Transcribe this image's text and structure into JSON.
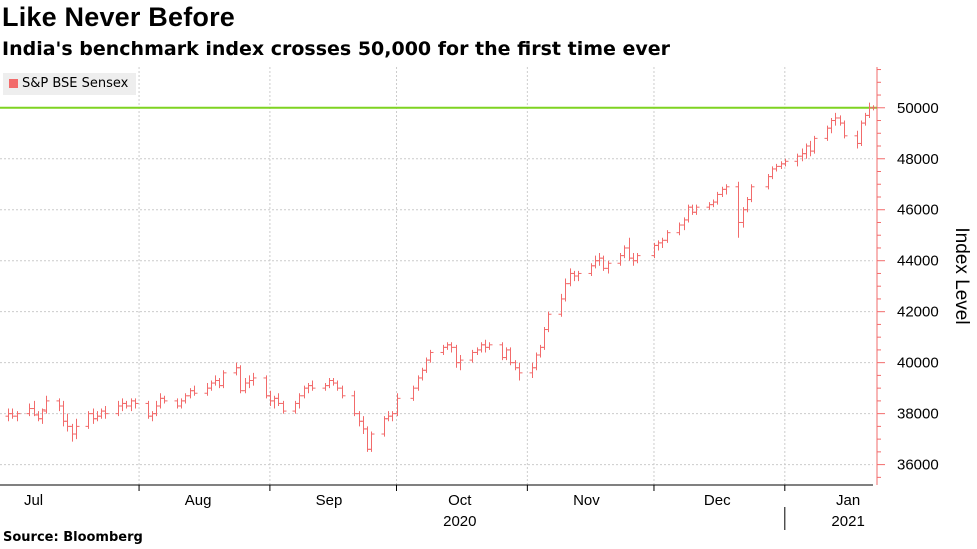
{
  "title": "Like Never Before",
  "subtitle": "India's benchmark index crosses 50,000 for the first time ever",
  "source": "Source: Bloomberg",
  "colors": {
    "series": "#f26b6b",
    "reference_line": "#7ed321",
    "grid": "#cccccc"
  },
  "chart_data": {
    "type": "ohlc",
    "title": "Like Never Before",
    "subtitle": "India's benchmark index crosses 50,000 for the first time ever",
    "ylabel": "Index Level",
    "xlabel": "",
    "ylim": [
      35200,
      51600
    ],
    "y_ticks": [
      36000,
      38000,
      40000,
      42000,
      44000,
      46000,
      48000,
      50000
    ],
    "y_axis_position": "right",
    "grid": true,
    "legend": {
      "position": "top-left",
      "entries": [
        "S&P BSE Sensex"
      ]
    },
    "reference_line": {
      "y": 50000
    },
    "x_range": [
      "2020-06-30",
      "2021-01-20"
    ],
    "month_labels": [
      {
        "label": "Jul",
        "date": "2020-07-07"
      },
      {
        "label": "Aug",
        "date": "2020-08-15"
      },
      {
        "label": "Sep",
        "date": "2020-09-15"
      },
      {
        "label": "Oct",
        "date": "2020-10-16"
      },
      {
        "label": "Nov",
        "date": "2020-11-15"
      },
      {
        "label": "Dec",
        "date": "2020-12-16"
      },
      {
        "label": "Jan",
        "date": "2021-01-16"
      }
    ],
    "year_labels": [
      {
        "label": "2020",
        "date": "2020-10-16"
      },
      {
        "label": "2021",
        "date": "2021-01-16"
      }
    ],
    "series": [
      {
        "name": "S&P BSE Sensex",
        "values": [
          [
            "2020-07-01",
            37900,
            38200,
            37700,
            38000
          ],
          [
            "2020-07-02",
            38000,
            38200,
            37800,
            37900
          ],
          [
            "2020-07-03",
            37900,
            38100,
            37700,
            38000
          ],
          [
            "2020-07-06",
            38000,
            38400,
            37900,
            38200
          ],
          [
            "2020-07-07",
            38200,
            38500,
            37900,
            37950
          ],
          [
            "2020-07-08",
            37950,
            38100,
            37700,
            37800
          ],
          [
            "2020-07-09",
            37800,
            38200,
            37600,
            38150
          ],
          [
            "2020-07-10",
            38100,
            38700,
            38000,
            38500
          ],
          [
            "2020-07-13",
            38500,
            38600,
            38100,
            38300
          ],
          [
            "2020-07-14",
            38300,
            38500,
            37500,
            37700
          ],
          [
            "2020-07-15",
            37700,
            38000,
            37300,
            37500
          ],
          [
            "2020-07-16",
            37500,
            37600,
            36900,
            37200
          ],
          [
            "2020-07-17",
            37200,
            37800,
            37000,
            37500
          ],
          [
            "2020-07-20",
            37500,
            38100,
            37400,
            38000
          ],
          [
            "2020-07-21",
            38000,
            38200,
            37600,
            37800
          ],
          [
            "2020-07-22",
            37800,
            38100,
            37700,
            37900
          ],
          [
            "2020-07-23",
            37900,
            38200,
            37800,
            38100
          ],
          [
            "2020-07-24",
            38100,
            38300,
            37800,
            38000
          ],
          [
            "2020-07-27",
            38000,
            38500,
            37900,
            38300
          ],
          [
            "2020-07-28",
            38300,
            38600,
            38100,
            38400
          ],
          [
            "2020-07-29",
            38400,
            38500,
            38200,
            38300
          ],
          [
            "2020-07-30",
            38300,
            38600,
            38100,
            38500
          ],
          [
            "2020-07-31",
            38500,
            38600,
            38200,
            38400
          ],
          [
            "2020-08-03",
            38400,
            38500,
            37800,
            37900
          ],
          [
            "2020-08-04",
            37900,
            38100,
            37700,
            38000
          ],
          [
            "2020-08-05",
            38000,
            38500,
            37900,
            38300
          ],
          [
            "2020-08-06",
            38300,
            38800,
            38200,
            38600
          ],
          [
            "2020-08-07",
            38600,
            38700,
            38400,
            38500
          ],
          [
            "2020-08-10",
            38500,
            38600,
            38200,
            38300
          ],
          [
            "2020-08-11",
            38300,
            38600,
            38200,
            38500
          ],
          [
            "2020-08-12",
            38500,
            38800,
            38400,
            38700
          ],
          [
            "2020-08-13",
            38700,
            39000,
            38600,
            38900
          ],
          [
            "2020-08-14",
            38900,
            39100,
            38700,
            38800
          ],
          [
            "2020-08-17",
            38800,
            39200,
            38700,
            39000
          ],
          [
            "2020-08-18",
            39000,
            39300,
            38900,
            39200
          ],
          [
            "2020-08-19",
            39200,
            39500,
            39100,
            39300
          ],
          [
            "2020-08-20",
            39300,
            39400,
            39000,
            39100
          ],
          [
            "2020-08-21",
            39100,
            39700,
            39000,
            39600
          ],
          [
            "2020-08-24",
            39600,
            40000,
            39500,
            39800
          ],
          [
            "2020-08-25",
            39800,
            39900,
            38800,
            38900
          ],
          [
            "2020-08-26",
            38900,
            39400,
            38800,
            39200
          ],
          [
            "2020-08-27",
            39200,
            39500,
            39000,
            39300
          ],
          [
            "2020-08-28",
            39300,
            39600,
            39100,
            39400
          ],
          [
            "2020-08-31",
            39400,
            39500,
            38600,
            38700
          ],
          [
            "2020-09-01",
            38700,
            38900,
            38300,
            38500
          ],
          [
            "2020-09-02",
            38500,
            38700,
            38200,
            38600
          ],
          [
            "2020-09-03",
            38600,
            38800,
            38300,
            38400
          ],
          [
            "2020-09-04",
            38400,
            38500,
            38000,
            38100
          ],
          [
            "2020-09-07",
            38100,
            38500,
            38000,
            38400
          ],
          [
            "2020-09-08",
            38400,
            38800,
            38200,
            38700
          ],
          [
            "2020-09-09",
            38700,
            39100,
            38600,
            39000
          ],
          [
            "2020-09-10",
            39000,
            39200,
            38800,
            39100
          ],
          [
            "2020-09-11",
            39100,
            39300,
            38900,
            39000
          ],
          [
            "2020-09-14",
            39000,
            39200,
            38900,
            39100
          ],
          [
            "2020-09-15",
            39100,
            39400,
            39000,
            39300
          ],
          [
            "2020-09-16",
            39300,
            39400,
            39100,
            39200
          ],
          [
            "2020-09-17",
            39200,
            39300,
            38900,
            39000
          ],
          [
            "2020-09-18",
            39000,
            39100,
            38600,
            38700
          ],
          [
            "2020-09-21",
            38700,
            38900,
            37900,
            38000
          ],
          [
            "2020-09-22",
            38000,
            38100,
            37500,
            37700
          ],
          [
            "2020-09-23",
            37700,
            37900,
            37200,
            37400
          ],
          [
            "2020-09-24",
            37400,
            37500,
            36500,
            36600
          ],
          [
            "2020-09-25",
            36600,
            37300,
            36500,
            37200
          ],
          [
            "2020-09-28",
            37200,
            37900,
            37100,
            37800
          ],
          [
            "2020-09-29",
            37800,
            38100,
            37700,
            37900
          ],
          [
            "2020-09-30",
            37900,
            38100,
            37700,
            38000
          ],
          [
            "2020-10-01",
            38000,
            38800,
            37900,
            38600
          ],
          [
            "2020-10-05",
            38600,
            39100,
            38500,
            39000
          ],
          [
            "2020-10-06",
            39000,
            39500,
            38900,
            39400
          ],
          [
            "2020-10-07",
            39400,
            39800,
            39300,
            39700
          ],
          [
            "2020-10-08",
            39700,
            40200,
            39600,
            40100
          ],
          [
            "2020-10-09",
            40100,
            40500,
            40000,
            40400
          ],
          [
            "2020-10-12",
            40400,
            40700,
            40300,
            40600
          ],
          [
            "2020-10-13",
            40600,
            40800,
            40500,
            40700
          ],
          [
            "2020-10-14",
            40700,
            40800,
            40400,
            40600
          ],
          [
            "2020-10-15",
            40600,
            40700,
            39800,
            40000
          ],
          [
            "2020-10-16",
            40000,
            40300,
            39700,
            40100
          ],
          [
            "2020-10-19",
            40100,
            40500,
            40000,
            40400
          ],
          [
            "2020-10-20",
            40400,
            40600,
            40300,
            40500
          ],
          [
            "2020-10-21",
            40500,
            40800,
            40400,
            40700
          ],
          [
            "2020-10-22",
            40700,
            40900,
            40400,
            40600
          ],
          [
            "2020-10-23",
            40600,
            40800,
            40500,
            40700
          ],
          [
            "2020-10-26",
            40700,
            40800,
            40100,
            40200
          ],
          [
            "2020-10-27",
            40200,
            40600,
            40100,
            40500
          ],
          [
            "2020-10-28",
            40500,
            40600,
            39900,
            40000
          ],
          [
            "2020-10-29",
            40000,
            40100,
            39700,
            39800
          ],
          [
            "2020-10-30",
            39800,
            40000,
            39300,
            39600
          ],
          [
            "2020-11-02",
            39600,
            40000,
            39400,
            39800
          ],
          [
            "2020-11-03",
            39800,
            40400,
            39700,
            40300
          ],
          [
            "2020-11-04",
            40300,
            40700,
            40200,
            40600
          ],
          [
            "2020-11-05",
            40600,
            41400,
            40500,
            41300
          ],
          [
            "2020-11-06",
            41300,
            42000,
            41200,
            41900
          ],
          [
            "2020-11-09",
            41900,
            42700,
            41800,
            42500
          ],
          [
            "2020-11-10",
            42500,
            43300,
            42400,
            43100
          ],
          [
            "2020-11-11",
            43100,
            43700,
            43000,
            43500
          ],
          [
            "2020-11-12",
            43500,
            43600,
            43200,
            43400
          ],
          [
            "2020-11-13",
            43400,
            43600,
            43200,
            43500
          ],
          [
            "2020-11-16",
            43500,
            43900,
            43400,
            43800
          ],
          [
            "2020-11-17",
            43800,
            44200,
            43700,
            44000
          ],
          [
            "2020-11-18",
            44000,
            44300,
            43800,
            44100
          ],
          [
            "2020-11-19",
            44100,
            44200,
            43600,
            43700
          ],
          [
            "2020-11-20",
            43700,
            44000,
            43500,
            43900
          ],
          [
            "2020-11-23",
            43900,
            44300,
            43800,
            44200
          ],
          [
            "2020-11-24",
            44200,
            44600,
            44100,
            44500
          ],
          [
            "2020-11-25",
            44500,
            44900,
            44000,
            44100
          ],
          [
            "2020-11-26",
            44100,
            44300,
            43800,
            44000
          ],
          [
            "2020-11-27",
            44000,
            44300,
            43900,
            44200
          ],
          [
            "2020-12-01",
            44200,
            44700,
            44100,
            44600
          ],
          [
            "2020-12-02",
            44600,
            44800,
            44400,
            44700
          ],
          [
            "2020-12-03",
            44700,
            44900,
            44500,
            44800
          ],
          [
            "2020-12-04",
            44800,
            45200,
            44700,
            45100
          ],
          [
            "2020-12-07",
            45100,
            45500,
            45000,
            45400
          ],
          [
            "2020-12-08",
            45400,
            45700,
            45200,
            45600
          ],
          [
            "2020-12-09",
            45600,
            46200,
            45500,
            46100
          ],
          [
            "2020-12-10",
            46100,
            46200,
            45800,
            45900
          ],
          [
            "2020-12-11",
            45900,
            46200,
            45800,
            46100
          ],
          [
            "2020-12-14",
            46100,
            46300,
            46000,
            46200
          ],
          [
            "2020-12-15",
            46200,
            46400,
            46100,
            46300
          ],
          [
            "2020-12-16",
            46300,
            46700,
            46200,
            46600
          ],
          [
            "2020-12-17",
            46600,
            46900,
            46500,
            46800
          ],
          [
            "2020-12-18",
            46800,
            47000,
            46600,
            46900
          ],
          [
            "2020-12-21",
            46900,
            47100,
            44900,
            45500
          ],
          [
            "2020-12-22",
            45500,
            46100,
            45300,
            46000
          ],
          [
            "2020-12-23",
            46000,
            46500,
            45900,
            46400
          ],
          [
            "2020-12-24",
            46400,
            47000,
            46300,
            46900
          ],
          [
            "2020-12-28",
            46900,
            47400,
            46800,
            47300
          ],
          [
            "2020-12-29",
            47300,
            47700,
            47200,
            47600
          ],
          [
            "2020-12-30",
            47600,
            47800,
            47500,
            47700
          ],
          [
            "2020-12-31",
            47700,
            47900,
            47600,
            47800
          ],
          [
            "2021-01-01",
            47800,
            48000,
            47700,
            47900
          ],
          [
            "2021-01-04",
            47900,
            48200,
            47700,
            48100
          ],
          [
            "2021-01-05",
            48100,
            48400,
            47900,
            48200
          ],
          [
            "2021-01-06",
            48200,
            48600,
            48000,
            48500
          ],
          [
            "2021-01-07",
            48500,
            48700,
            48100,
            48300
          ],
          [
            "2021-01-08",
            48300,
            48900,
            48200,
            48800
          ],
          [
            "2021-01-11",
            48800,
            49300,
            48700,
            49200
          ],
          [
            "2021-01-12",
            49200,
            49600,
            49000,
            49500
          ],
          [
            "2021-01-13",
            49500,
            49800,
            49300,
            49600
          ],
          [
            "2021-01-14",
            49600,
            49700,
            49300,
            49400
          ],
          [
            "2021-01-15",
            49400,
            49500,
            48800,
            48900
          ],
          [
            "2021-01-18",
            48900,
            49100,
            48400,
            48600
          ],
          [
            "2021-01-19",
            48600,
            49500,
            48500,
            49400
          ],
          [
            "2021-01-20",
            49400,
            49800,
            49300,
            49700
          ],
          [
            "2021-01-21",
            49700,
            50200,
            49600,
            50000
          ],
          [
            "2021-01-22",
            50000,
            50100,
            49900,
            50000
          ]
        ]
      }
    ]
  }
}
